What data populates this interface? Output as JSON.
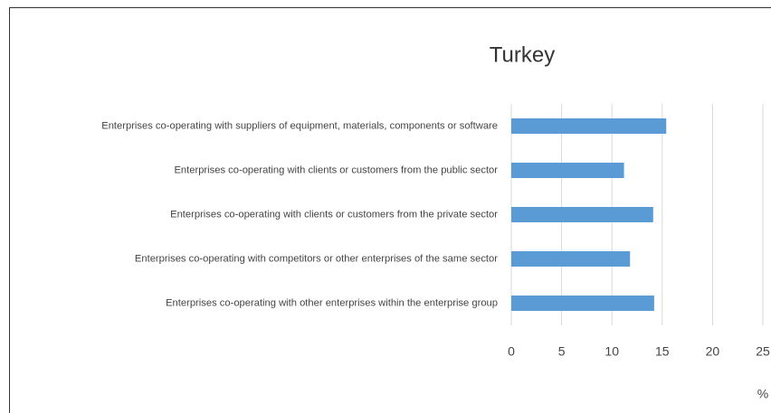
{
  "chart_data": {
    "type": "barh",
    "title": "Turkey",
    "categories": [
      "Enterprises co-operating with suppliers of equipment, materials, components or software",
      "Enterprises co-operating with clients or customers from the public sector",
      "Enterprises co-operating with clients or customers from the private sector",
      "Enterprises co-operating with competitors or other enterprises of the same sector",
      "Enterprises co-operating with other enterprises within the enterprise group"
    ],
    "values": [
      15.4,
      11.2,
      14.1,
      11.8,
      14.2
    ],
    "color": "#5b9bd5",
    "xlabel": "%",
    "xlim": [
      0,
      25
    ],
    "xticks": [
      0,
      5,
      10,
      15,
      20,
      25
    ],
    "grid": true
  }
}
